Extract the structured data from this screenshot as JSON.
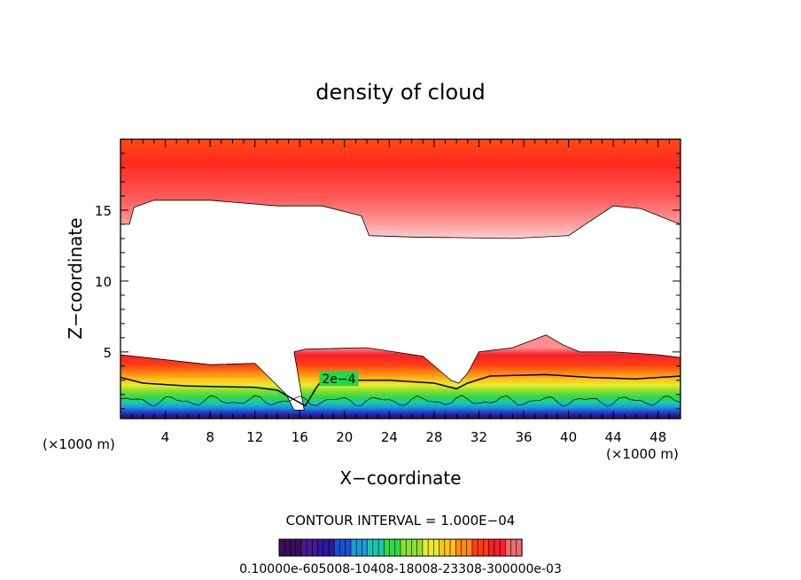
{
  "chart_data": {
    "type": "heatmap",
    "title": "density of cloud",
    "xlabel": "X−coordinate",
    "ylabel": "Z−coordinate",
    "x_unit_label": "(×1000 m)",
    "y_unit_label": "(×1000 m)",
    "xlim": [
      0,
      50
    ],
    "ylim": [
      0.3,
      20
    ],
    "x_ticks": [
      4,
      8,
      12,
      16,
      20,
      24,
      28,
      32,
      36,
      40,
      44,
      48
    ],
    "y_ticks": [
      5,
      10,
      15
    ],
    "contour_interval_text": "CONTOUR INTERVAL = 1.000E−04",
    "contour_label": "2e−4",
    "colorbar_labels_text": "0.10000e-605008-10408-18008-23308-300000e-03",
    "colormap": [
      "#3a0f5a",
      "#2a1aa0",
      "#1e4fd0",
      "#1a9ad8",
      "#19c7b0",
      "#2fd84a",
      "#8ee030",
      "#e8ec2a",
      "#ffc21a",
      "#ff8a10",
      "#ff3c14",
      "#f5202a"
    ],
    "colorbar_colors": [
      "#3a0f5a",
      "#4a1890",
      "#2a1aa0",
      "#1e4fd0",
      "#1a9ad8",
      "#19c7b0",
      "#2fd84a",
      "#8ee030",
      "#e8ec2a",
      "#ffc21a",
      "#ff8a10",
      "#ff3c14",
      "#f5202a",
      "#f06a6a"
    ],
    "upper_layer": {
      "top_km": 20,
      "bottom_profile": [
        [
          0,
          14.0
        ],
        [
          0.8,
          14.0
        ],
        [
          1.2,
          15.2
        ],
        [
          3,
          15.7
        ],
        [
          8,
          15.7
        ],
        [
          14,
          15.3
        ],
        [
          18,
          15.3
        ],
        [
          21.5,
          14.6
        ],
        [
          22.2,
          13.2
        ],
        [
          26,
          13.1
        ],
        [
          35,
          13.0
        ],
        [
          40,
          13.2
        ],
        [
          41.5,
          14.0
        ],
        [
          44,
          15.3
        ],
        [
          46.5,
          15.1
        ],
        [
          49,
          14.3
        ],
        [
          50,
          14.0
        ]
      ]
    },
    "lower_layer": {
      "top_profile": [
        [
          0,
          4.8
        ],
        [
          8,
          4.1
        ],
        [
          12,
          4.2
        ],
        [
          14.8,
          2.0
        ],
        [
          15.5,
          0.9
        ],
        [
          16.4,
          0.9
        ],
        [
          15.5,
          5.0
        ],
        [
          16.5,
          5.2
        ],
        [
          22,
          5.3
        ],
        [
          27,
          4.7
        ],
        [
          29.5,
          3.0
        ],
        [
          30.2,
          2.8
        ],
        [
          31,
          3.5
        ],
        [
          32,
          5.0
        ],
        [
          35,
          5.3
        ],
        [
          38,
          6.2
        ],
        [
          39.5,
          5.5
        ],
        [
          41,
          5.0
        ],
        [
          44,
          5.0
        ],
        [
          48,
          4.8
        ],
        [
          50,
          4.6
        ]
      ],
      "contour_2e4": [
        [
          0,
          3.2
        ],
        [
          2,
          2.8
        ],
        [
          6,
          2.6
        ],
        [
          12,
          2.5
        ],
        [
          14,
          2.3
        ],
        [
          16.5,
          1.2
        ],
        [
          17.5,
          2.5
        ],
        [
          18,
          3.0
        ],
        [
          20,
          3.0
        ],
        [
          24,
          3.0
        ],
        [
          28,
          2.8
        ],
        [
          30,
          2.4
        ],
        [
          31,
          2.8
        ],
        [
          33,
          3.3
        ],
        [
          38,
          3.4
        ],
        [
          42,
          3.2
        ],
        [
          46,
          3.1
        ],
        [
          50,
          3.3
        ]
      ]
    }
  }
}
